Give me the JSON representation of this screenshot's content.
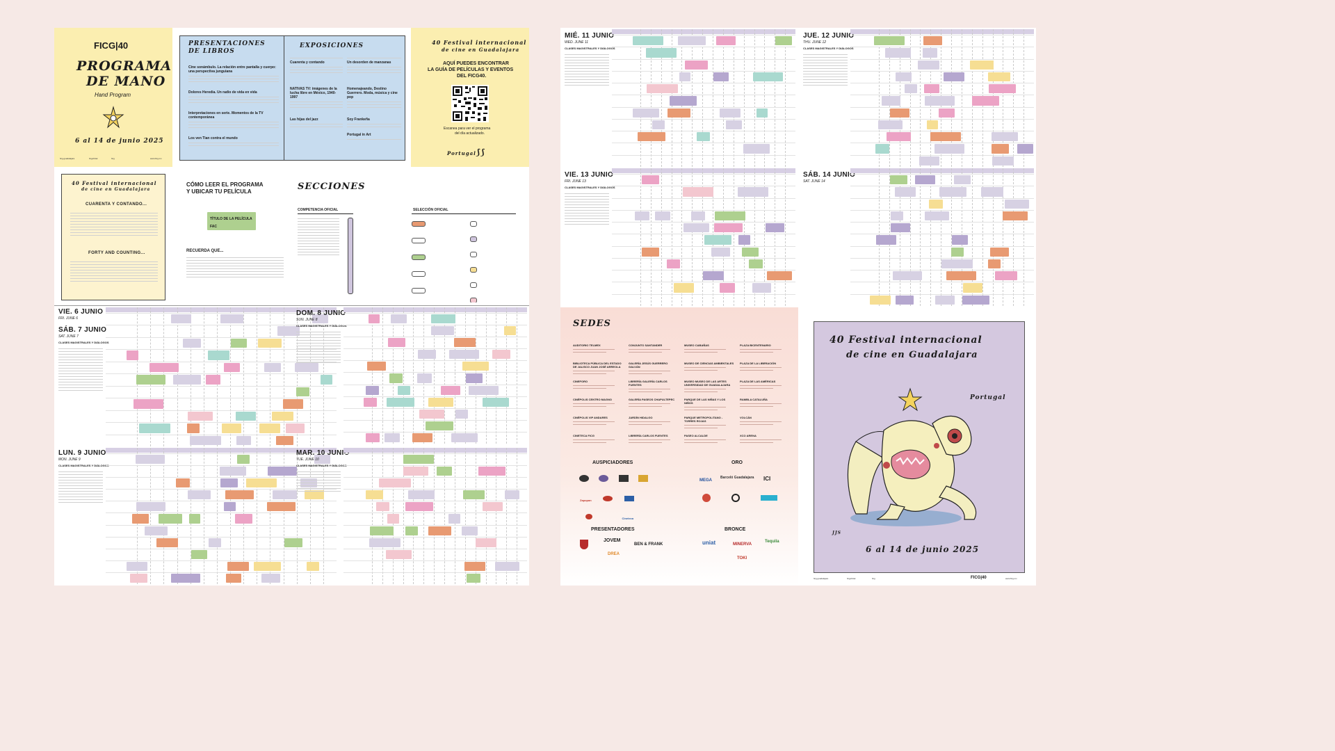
{
  "colors": {
    "background": "#f6e9e6",
    "yellow": "#fbeeb0",
    "blue": "#c7dcef",
    "purple": "#cfc5dd",
    "slot_purple": "#d7d1e3",
    "slot_dark_purple": "#b5a7cf",
    "green": "#aed08f",
    "orange": "#e89a72",
    "pink": "#eca3c5",
    "yellow_slot": "#f6de93",
    "teal": "#a9d9cf",
    "rose": "#f3c7cf"
  },
  "cover": {
    "logo": "FICG|40",
    "title_line1": "PROGRAMA",
    "title_line2": "DE MANO",
    "subtitle": "Hand Program",
    "dates": "6 al 14 de junio 2025",
    "footer_left": "ficg.guadalajara",
    "footer_mid1": "ficgoficial",
    "footer_mid2": "ficg",
    "footer_right": "www.ficg.mx"
  },
  "books": {
    "heading_line1": "PRESENTACIONES",
    "heading_line2": "DE LIBROS",
    "items": [
      "Cine sonámbulo. La relación entre pantalla y cuerpo: una perspectiva junguiana",
      "Dolores Heredia. Un radio de vida en vida",
      "Interpretaciones en serie. Momentos de la TV contemporánea",
      "Los ven Tian contra el mundo"
    ]
  },
  "exhibits": {
    "heading": "EXPOSICIONES",
    "items": [
      "Cuarenta y contando",
      "Un desorden de manzanas",
      "NATIVAS TV: imágenes de la lucha libre en México, 1940-1997",
      "Homenajeando, Destino Guerrero. Moda, música y cine pop",
      "Las hijas del jazz",
      "Soy Frankeña",
      "Portugal in Art"
    ]
  },
  "qr": {
    "logo_line1": "40 Festival internacional",
    "logo_line2": "de cine en Guadalajara",
    "text_line1": "AQUÍ PUEDES ENCONTRAR",
    "text_line2": "LA GUÍA DE PELÍCULAS Y EVENTOS",
    "text_line3": "DEL FICG40.",
    "scan_line1": "Escanea para ver el programa",
    "scan_line2": "del día actualizado.",
    "guest": "Portugal"
  },
  "intro": {
    "logo_line1": "40 Festival internacional",
    "logo_line2": "de cine en Guadalajara",
    "heading_es": "CUARENTA Y CONTANDO...",
    "heading_en": "FORTY AND COUNTING..."
  },
  "howto": {
    "title_line1": "CÓMO LEER EL PROGRAMA",
    "title_line2": "Y UBICAR TU PELÍCULA",
    "sample_title": "TÍTULO DE LA PELÍCULA",
    "sample_code": "FAC",
    "remember": "RECUERDA QUE..."
  },
  "sections": {
    "heading": "SECCIONES",
    "competencia": "COMPETENCIA OFICIAL",
    "seleccion": "SELECCIÓN OFICIAL"
  },
  "schedule_left": {
    "days": [
      {
        "title": "VIE. 6 JUNIO",
        "sub": "FRI. JUNE 6"
      },
      {
        "title": "SÁB. 7 JUNIO",
        "sub": "SAT. JUNE 7"
      },
      {
        "title": "LUN. 9 JUNIO",
        "sub": "MON. JUNE 9"
      },
      {
        "title": "DOM. 8 JUNIO",
        "sub": "SUN. JUNE 8"
      },
      {
        "title": "MAR. 10 JUNIO",
        "sub": "TUE. JUNE 10"
      }
    ],
    "classes_label": "CLASES MAGISTRALES Y DIÁLOGOS"
  },
  "schedule_right": {
    "days": [
      {
        "title": "MIÉ. 11 JUNIO",
        "sub": "WED. JUNE 11"
      },
      {
        "title": "JUE. 12 JUNIO",
        "sub": "THU. JUNE 12"
      },
      {
        "title": "VIE. 13 JUNIO",
        "sub": "FRI. JUNE 13"
      },
      {
        "title": "SÁB. 14 JUNIO",
        "sub": "SAT. JUNE 14"
      }
    ],
    "classes_label": "CLASES MAGISTRALES Y DIÁLOGOS"
  },
  "venues": {
    "heading": "SEDES",
    "col1": [
      "AUDITORIO TELMEX",
      "BIBLIOTECA PÚBLICA DEL ESTADO DE JALISCO JUAN JOSÉ ARREOLA",
      "CINEFORO",
      "CINÉPOLIS CENTRO MAGNO",
      "CINÉPOLIS VIP ANDARES",
      "CINETECA FICG"
    ],
    "col2": [
      "CONJUNTO SANTANDER",
      "GALERÍA JESÚS GUERRERO GALVÁN",
      "LIBRERÍA GALERÍA CARLOS FUENTES",
      "GALERÍA PASEOS CHAPULTEPEC",
      "JARDÍN HIDALGO",
      "LIBRERÍA CARLOS FUENTES"
    ],
    "col3": [
      "MUSEO CABAÑAS",
      "MUSEO DE CIENCIAS AMBIENTALES",
      "MUSEO MUSEO DE LAS ARTES UNIVERSIDAD DE GUADALAJARA",
      "PARQUE DE LAS NIÑAS Y LOS NIÑOS",
      "PARQUE METROPOLITANO - TORRES ROJAS",
      "PASEO ALCALDE"
    ],
    "col4": [
      "PLAZA BICENTENARIO",
      "PLAZA DE LA LIBERACIÓN",
      "PLAZA DE LAS AMÉRICAS",
      "RAMBLA CATALUÑA",
      "VOLCÁN",
      "XCO ARENA"
    ]
  },
  "sponsors": {
    "auspiciadores": "AUSPICIADORES",
    "oro": "ORO",
    "presentadores": "PRESENTADORES",
    "bronce": "BRONCE",
    "oro_logos": [
      "MEGA",
      "Barceló Guadalajara",
      "ICI"
    ],
    "pres_logos": [
      "JOVEM",
      "BEN & FRANK",
      "DREA"
    ],
    "bronce_logos": [
      "uniat",
      "MINERVA",
      "Tequila",
      "TOKI"
    ],
    "ausp_logos": [
      "Zapopan",
      "Cineteca"
    ]
  },
  "poster": {
    "title_line1": "40 Festival internacional",
    "title_line2": "de cine en Guadalajara",
    "guest": "Portugal",
    "dates": "6 al 14 de junio 2025",
    "signature": "JJS",
    "footer_left": "ficg.guadalajara",
    "footer_mid1": "ficgoficial",
    "footer_mid2": "ficg",
    "footer_logo": "FICG|40",
    "footer_right": "www.ficg.mx"
  }
}
